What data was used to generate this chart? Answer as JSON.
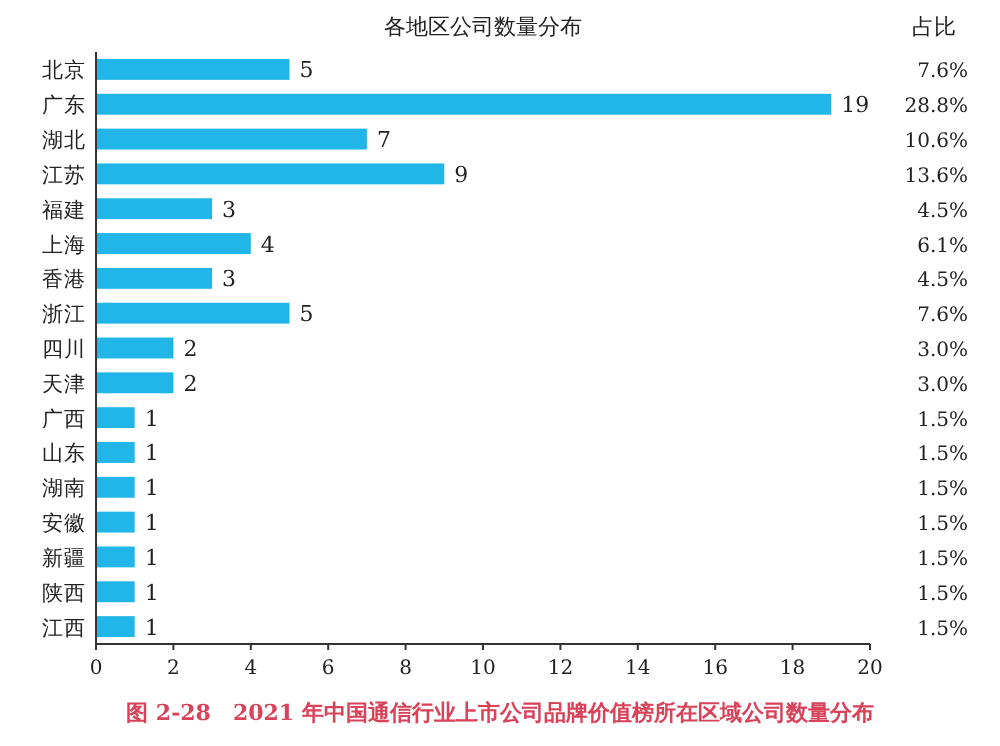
{
  "chart_data": {
    "type": "bar",
    "orientation": "horizontal",
    "title": "各地区公司数量分布",
    "categories": [
      "北京",
      "广东",
      "湖北",
      "江苏",
      "福建",
      "上海",
      "香港",
      "浙江",
      "四川",
      "天津",
      "广西",
      "山东",
      "湖南",
      "安徽",
      "新疆",
      "陕西",
      "江西"
    ],
    "values": [
      5,
      19,
      7,
      9,
      3,
      4,
      3,
      5,
      2,
      2,
      1,
      1,
      1,
      1,
      1,
      1,
      1
    ],
    "color": "#22b5e8",
    "data_labels": true,
    "xlim": [
      0,
      20
    ],
    "xticks": [
      0,
      2,
      4,
      6,
      8,
      10,
      12,
      14,
      16,
      18,
      20
    ],
    "annotations": [
      "占比",
      "7.6%",
      "28.8%",
      "10.6%",
      "13.6%",
      "4.5%",
      "6.1%",
      "4.5%",
      "7.6%",
      "3.0%",
      "3.0%",
      "1.5%",
      "1.5%",
      "1.5%",
      "1.5%",
      "1.5%",
      "1.5%",
      "1.5%",
      "图 2-28　2021 年中国通信行业上市公司品牌价值榜所在区域公司数量分布"
    ]
  }
}
